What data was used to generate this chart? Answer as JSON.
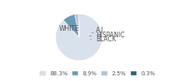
{
  "labels": [
    "WHITE",
    "A.I.",
    "HISPANIC",
    "BLACK"
  ],
  "values": [
    88.3,
    8.9,
    2.5,
    0.3
  ],
  "colors": [
    "#d9e2ec",
    "#6b9ab8",
    "#b0c4d8",
    "#2e5f7a"
  ],
  "legend_colors": [
    "#d9e2ec",
    "#6b9ab8",
    "#b0c4d8",
    "#2e5f7a"
  ],
  "legend_labels": [
    "88.3%",
    "8.9%",
    "2.5%",
    "0.3%"
  ],
  "startangle": 90,
  "text_color": "#555555",
  "font_size": 5.5
}
